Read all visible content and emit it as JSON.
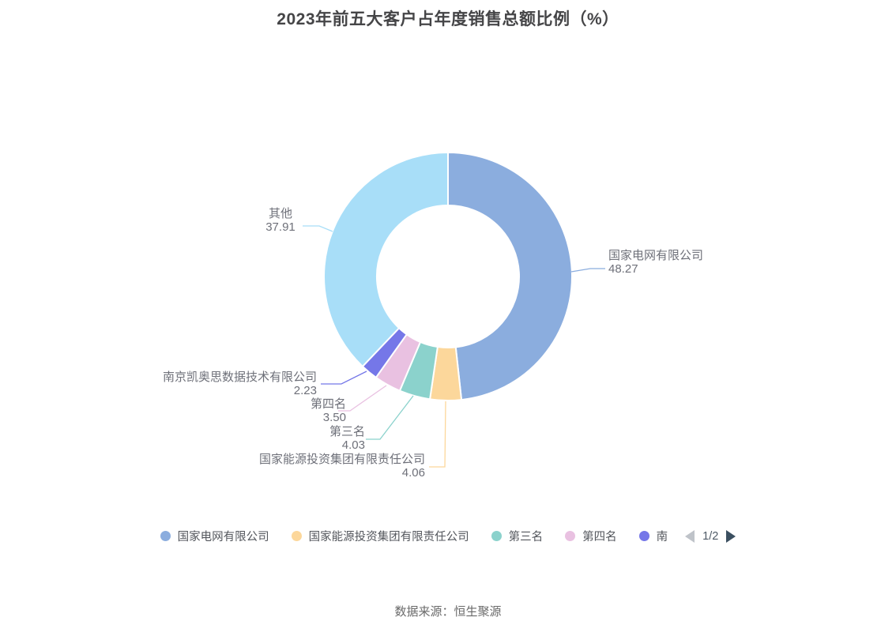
{
  "page": {
    "title": "2023年前五大客户占年度销售总额比例（%）",
    "source": "数据来源：恒生聚源"
  },
  "chart_data": {
    "type": "pie",
    "subtype": "donut",
    "title": "2023年前五大客户占年度销售总额比例（%）",
    "unit": "%",
    "start_angle": "top",
    "direction": "clockwise",
    "legend_position": "bottom",
    "label_color": "#6e7079",
    "series": [
      {
        "name": "国家电网有限公司",
        "value": 48.27,
        "display": "48.27",
        "color": "#8badde"
      },
      {
        "name": "国家能源投资集团有限责任公司",
        "value": 4.06,
        "display": "4.06",
        "color": "#fcd79b"
      },
      {
        "name": "第三名",
        "value": 4.03,
        "display": "4.03",
        "color": "#8bd2cc"
      },
      {
        "name": "第四名",
        "value": 3.5,
        "display": "3.50",
        "color": "#e9c1e1"
      },
      {
        "name": "南京凯奥思数据技术有限公司",
        "value": 2.23,
        "display": "2.23",
        "color": "#7577e8"
      },
      {
        "name": "其他",
        "value": 37.91,
        "display": "37.91",
        "color": "#a8def8"
      }
    ]
  },
  "legend": {
    "items": [
      {
        "label": "国家电网有限公司",
        "color": "#8badde"
      },
      {
        "label": "国家能源投资集团有限责任公司",
        "color": "#fcd79b"
      },
      {
        "label": "第三名",
        "color": "#8bd2cc"
      },
      {
        "label": "第四名",
        "color": "#e9c1e1"
      },
      {
        "label": "南",
        "color": "#7577e8"
      }
    ],
    "pagination": {
      "current": "1/2"
    }
  }
}
